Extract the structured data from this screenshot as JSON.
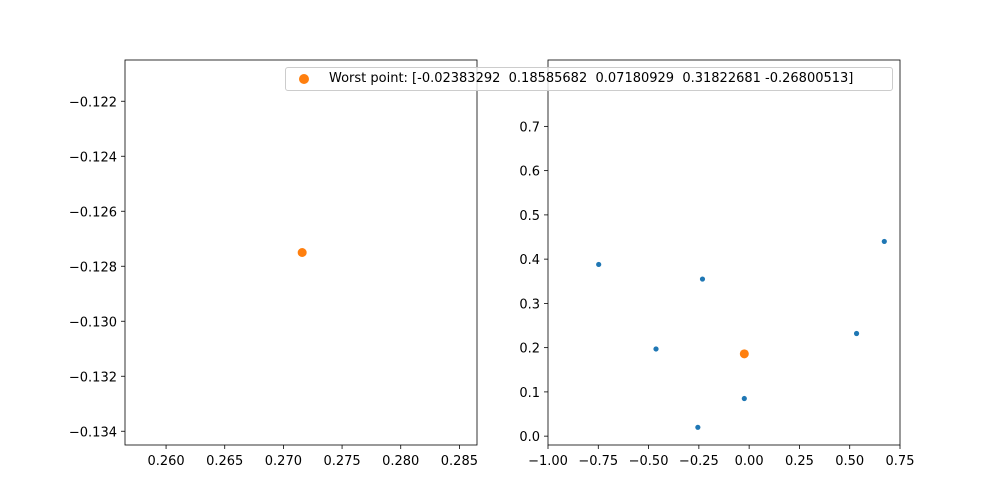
{
  "colors": {
    "series": "#1f77b4",
    "worst": "#ff7f0e"
  },
  "chart_data": [
    {
      "type": "scatter",
      "xlim": [
        0.2565,
        0.2865
      ],
      "ylim": [
        -0.1345,
        -0.1205
      ],
      "xticks": [
        0.26,
        0.265,
        0.27,
        0.275,
        0.28,
        0.285
      ],
      "xtick_labels": [
        "0.260",
        "0.265",
        "0.270",
        "0.275",
        "0.280",
        "0.285"
      ],
      "yticks": [
        -0.134,
        -0.132,
        -0.13,
        -0.128,
        -0.126,
        -0.124,
        -0.122
      ],
      "ytick_labels": [
        "−0.134",
        "−0.132",
        "−0.130",
        "−0.128",
        "−0.126",
        "−0.124",
        "−0.122"
      ],
      "series": [
        {
          "points": [
            [
              0.2716,
              -0.1275
            ]
          ],
          "color": "#ff7f0e",
          "size": "large"
        }
      ]
    },
    {
      "type": "scatter",
      "xlim": [
        -1.0,
        0.75
      ],
      "ylim": [
        -0.02,
        0.85
      ],
      "xticks": [
        -1.0,
        -0.75,
        -0.5,
        -0.25,
        0.0,
        0.25,
        0.5,
        0.75
      ],
      "xtick_labels": [
        "−1.00",
        "−0.75",
        "−0.50",
        "−0.25",
        "0.00",
        "0.25",
        "0.50",
        "0.75"
      ],
      "yticks": [
        0.0,
        0.1,
        0.2,
        0.3,
        0.4,
        0.5,
        0.6,
        0.7
      ],
      "ytick_labels": [
        "0.0",
        "0.1",
        "0.2",
        "0.3",
        "0.4",
        "0.5",
        "0.6",
        "0.7"
      ],
      "series": [
        {
          "points": [
            [
              -0.748,
              0.388
            ],
            [
              -0.463,
              0.197
            ],
            [
              -0.232,
              0.355
            ],
            [
              -0.255,
              0.02
            ],
            [
              -0.024,
              0.085
            ],
            [
              0.534,
              0.232
            ],
            [
              0.672,
              0.44
            ]
          ],
          "color": "#1f77b4",
          "size": "small"
        },
        {
          "points": [
            [
              -0.024,
              0.186
            ]
          ],
          "color": "#ff7f0e",
          "size": "large"
        }
      ]
    }
  ],
  "legend": {
    "label": "Worst point: [-0.02383292  0.18585682  0.07180929  0.31822681 -0.26800513]",
    "placement": "top-center"
  }
}
